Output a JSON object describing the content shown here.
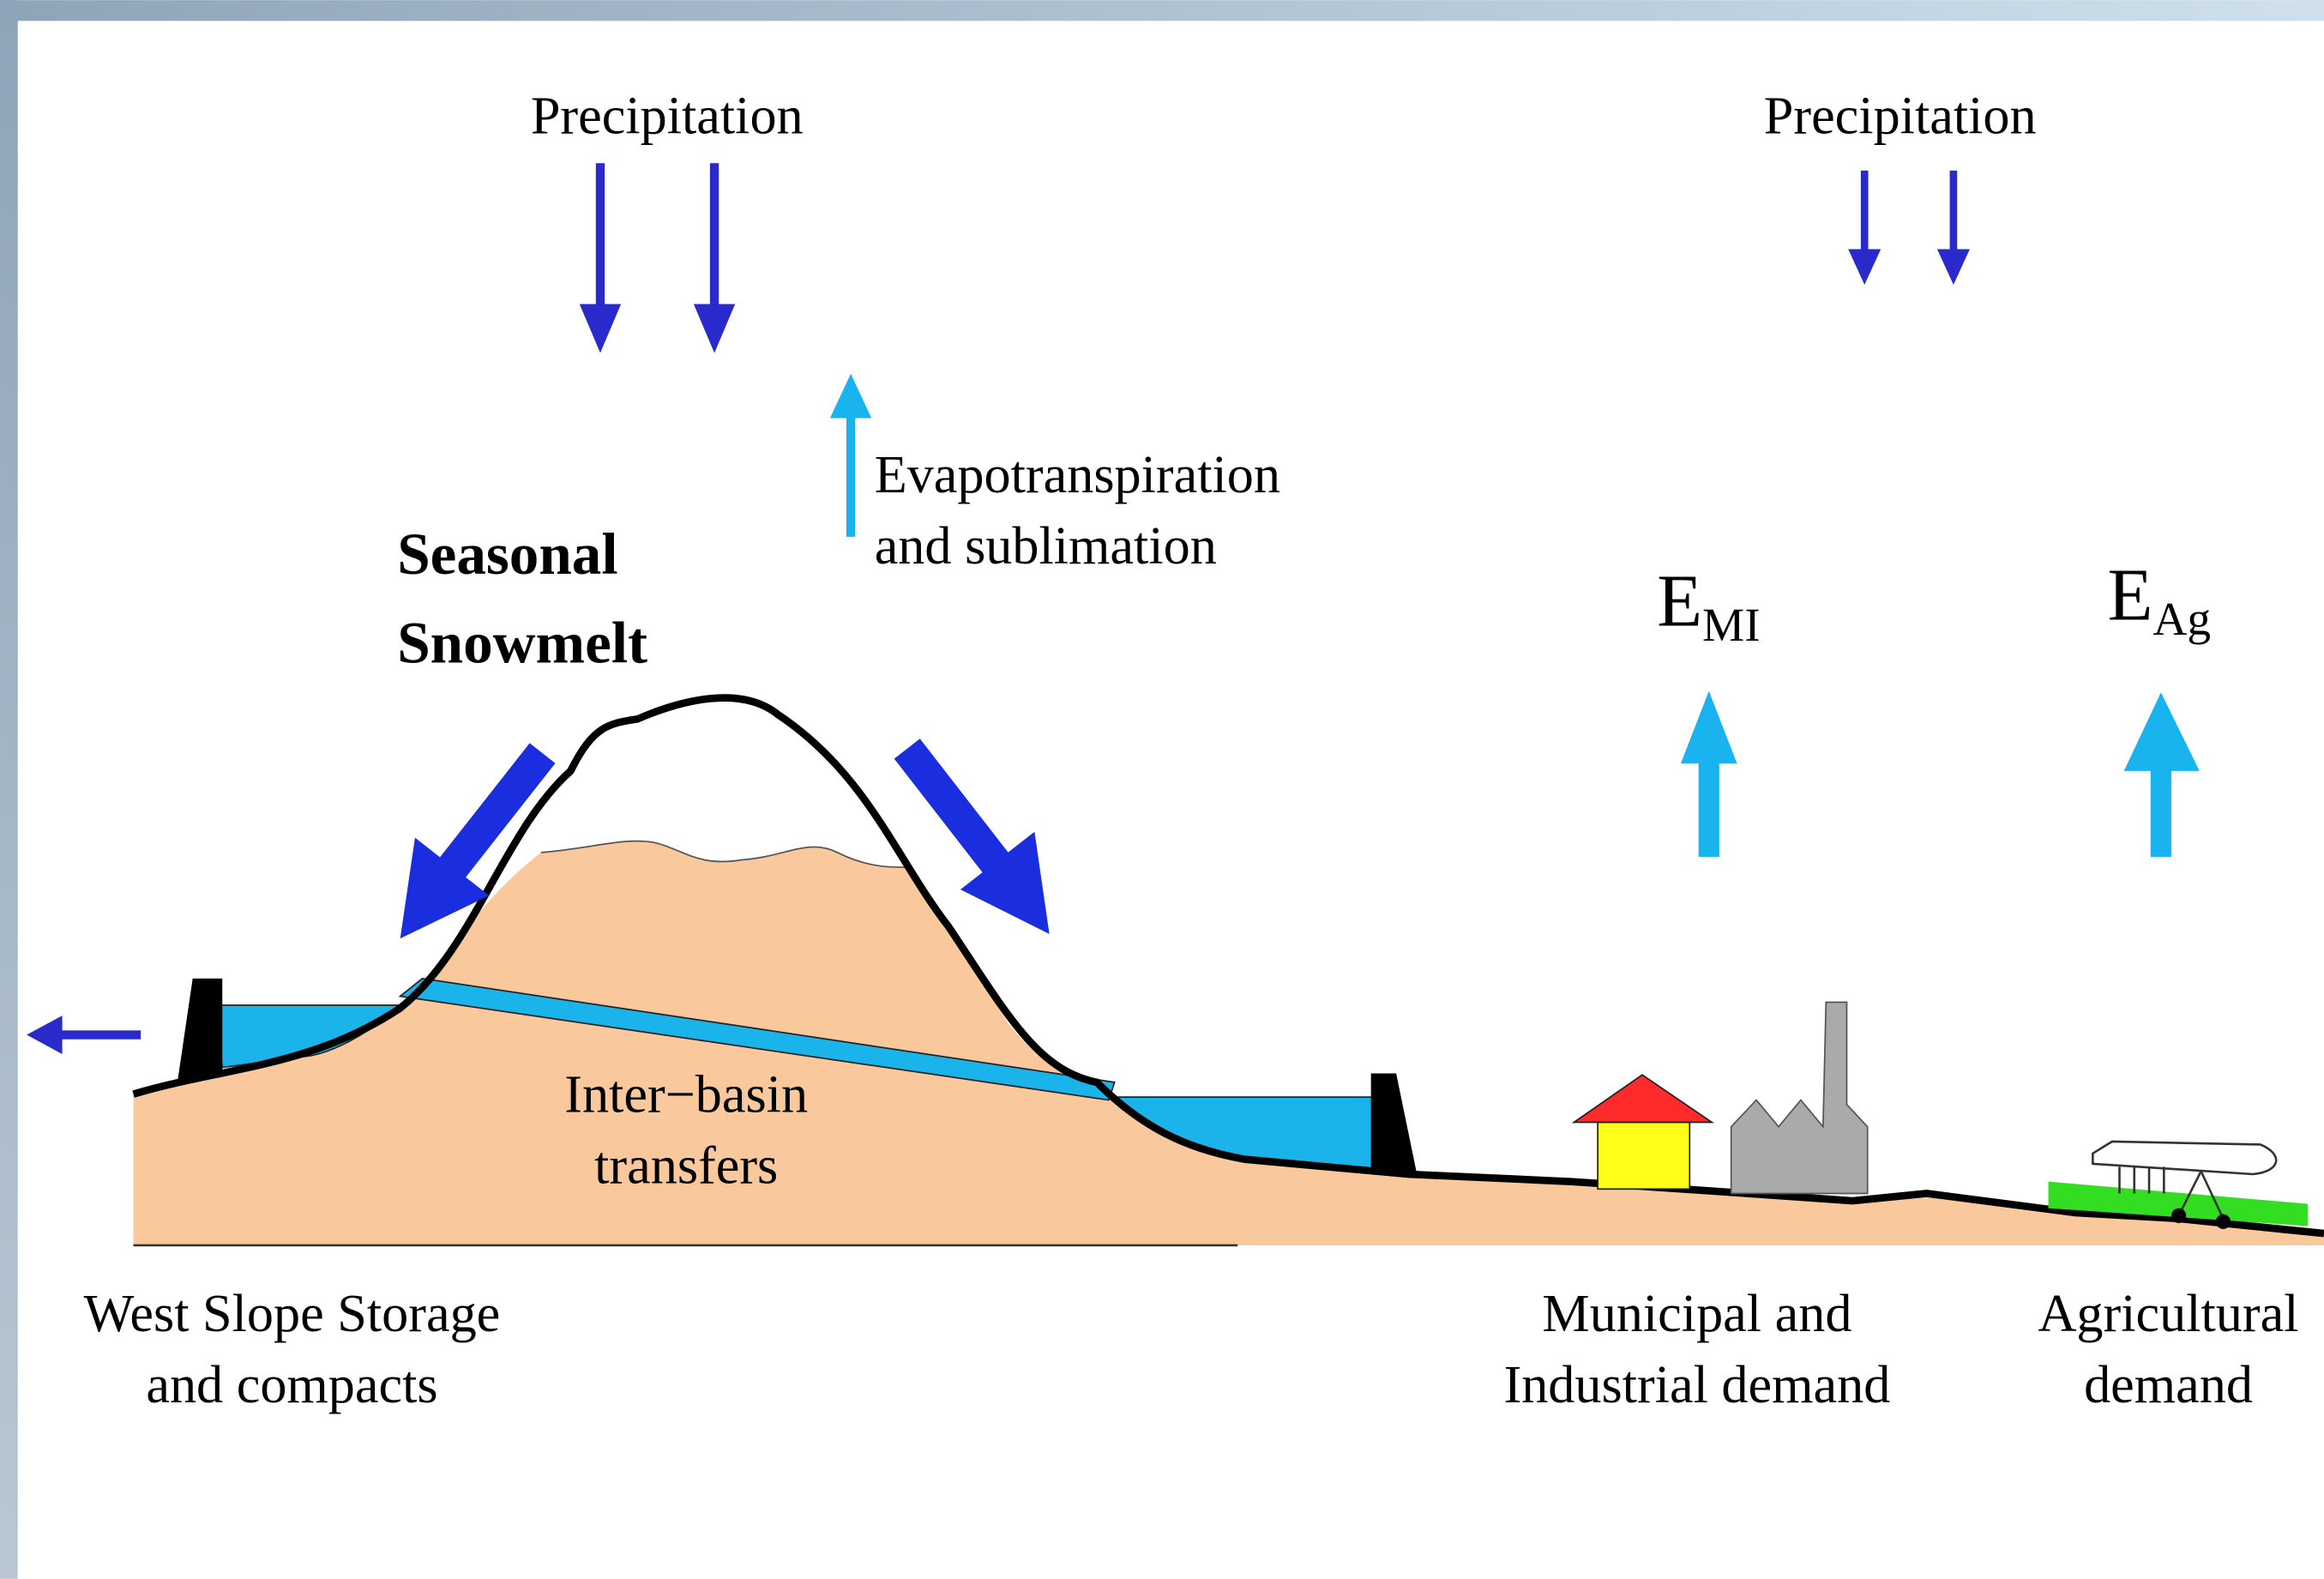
{
  "labels": {
    "precipitation_left": "Precipitation",
    "precipitation_right": "Precipitation",
    "evapotranspiration": [
      "Evapotranspiration",
      "and sublimation"
    ],
    "snowmelt": [
      "Seasonal",
      "Snowmelt"
    ],
    "e_mi": {
      "base": "E",
      "sub": "MI"
    },
    "e_ag": {
      "base": "E",
      "sub": "Ag"
    },
    "transfers": [
      "Inter−basin",
      "transfers"
    ],
    "west_slope": [
      "West Slope Storage",
      "and compacts"
    ],
    "municipal": [
      "Municipal and",
      "Industrial demand"
    ],
    "agricultural": [
      "Agricultural",
      "demand"
    ]
  }
}
